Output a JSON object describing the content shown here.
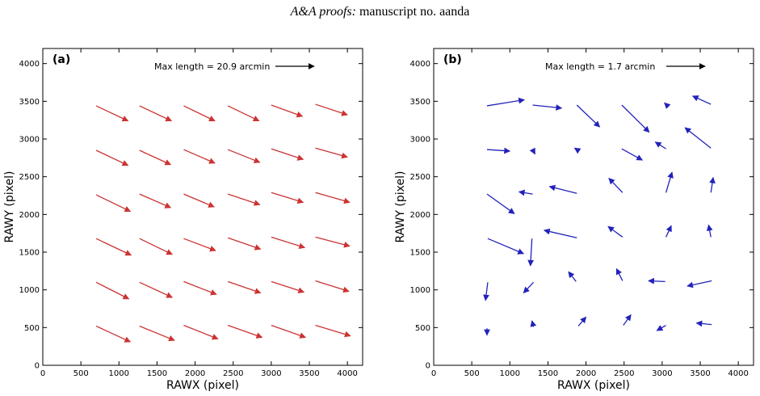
{
  "header": {
    "journal": "A&A proofs:",
    "rest": "manuscript no. aanda"
  },
  "chart_data": [
    {
      "type": "quiver",
      "panel_label": "(a)",
      "xlabel": "RAWX (pixel)",
      "ylabel": "RAWY (pixel)",
      "xlim": [
        0,
        4200
      ],
      "ylim": [
        0,
        4200
      ],
      "xticks": [
        0,
        500,
        1000,
        1500,
        2000,
        2500,
        3000,
        3500,
        4000
      ],
      "yticks": [
        0,
        500,
        1000,
        1500,
        2000,
        2500,
        3000,
        3500,
        4000
      ],
      "color": "#cc3333",
      "legend": "Max length = 20.9 arcmin",
      "vectors": [
        [
          700,
          520,
          1150,
          310
        ],
        [
          1270,
          520,
          1730,
          330
        ],
        [
          1850,
          530,
          2300,
          350
        ],
        [
          2430,
          530,
          2880,
          370
        ],
        [
          3000,
          530,
          3450,
          370
        ],
        [
          3580,
          530,
          4040,
          390
        ],
        [
          700,
          1100,
          1130,
          880
        ],
        [
          1270,
          1100,
          1700,
          900
        ],
        [
          1850,
          1110,
          2280,
          940
        ],
        [
          2430,
          1110,
          2860,
          960
        ],
        [
          3000,
          1110,
          3430,
          970
        ],
        [
          3580,
          1120,
          4020,
          980
        ],
        [
          700,
          1680,
          1160,
          1460
        ],
        [
          1270,
          1680,
          1700,
          1470
        ],
        [
          1850,
          1680,
          2270,
          1520
        ],
        [
          2430,
          1690,
          2860,
          1540
        ],
        [
          3000,
          1700,
          3440,
          1560
        ],
        [
          3580,
          1700,
          4030,
          1580
        ],
        [
          700,
          2260,
          1150,
          2040
        ],
        [
          1270,
          2270,
          1680,
          2090
        ],
        [
          1850,
          2270,
          2250,
          2100
        ],
        [
          2430,
          2270,
          2850,
          2130
        ],
        [
          3000,
          2290,
          3420,
          2160
        ],
        [
          3580,
          2290,
          4030,
          2160
        ],
        [
          700,
          2850,
          1120,
          2650
        ],
        [
          1270,
          2850,
          1680,
          2660
        ],
        [
          1850,
          2860,
          2260,
          2680
        ],
        [
          2430,
          2860,
          2850,
          2690
        ],
        [
          3000,
          2870,
          3420,
          2730
        ],
        [
          3580,
          2880,
          4000,
          2760
        ],
        [
          700,
          3440,
          1120,
          3240
        ],
        [
          1270,
          3440,
          1690,
          3240
        ],
        [
          1850,
          3440,
          2260,
          3240
        ],
        [
          2430,
          3440,
          2840,
          3240
        ],
        [
          3000,
          3450,
          3410,
          3300
        ],
        [
          3580,
          3460,
          4000,
          3320
        ]
      ]
    },
    {
      "type": "quiver",
      "panel_label": "(b)",
      "xlabel": "RAWX (pixel)",
      "ylabel": "RAWY (pixel)",
      "xlim": [
        0,
        4200
      ],
      "ylim": [
        0,
        4200
      ],
      "xticks": [
        0,
        500,
        1000,
        1500,
        2000,
        2500,
        3000,
        3500,
        4000
      ],
      "yticks": [
        0,
        500,
        1000,
        1500,
        2000,
        2500,
        3000,
        3500,
        4000
      ],
      "color": "#2222bb",
      "legend": "Max length = 1.7 arcmin",
      "vectors": [
        [
          700,
          490,
          700,
          400
        ],
        [
          1310,
          510,
          1290,
          590
        ],
        [
          1900,
          520,
          2000,
          640
        ],
        [
          2490,
          530,
          2590,
          670
        ],
        [
          3050,
          530,
          2930,
          460
        ],
        [
          3650,
          540,
          3450,
          560
        ],
        [
          710,
          1100,
          680,
          860
        ],
        [
          1310,
          1100,
          1180,
          960
        ],
        [
          1870,
          1110,
          1770,
          1240
        ],
        [
          2480,
          1120,
          2400,
          1280
        ],
        [
          3040,
          1110,
          2820,
          1120
        ],
        [
          3650,
          1120,
          3330,
          1050
        ],
        [
          710,
          1680,
          1180,
          1480
        ],
        [
          1290,
          1680,
          1270,
          1320
        ],
        [
          1880,
          1690,
          1450,
          1790
        ],
        [
          2480,
          1700,
          2290,
          1840
        ],
        [
          3050,
          1700,
          3120,
          1850
        ],
        [
          3640,
          1700,
          3610,
          1860
        ],
        [
          700,
          2270,
          1060,
          2010
        ],
        [
          1300,
          2270,
          1120,
          2300
        ],
        [
          1880,
          2280,
          1520,
          2370
        ],
        [
          2480,
          2290,
          2300,
          2480
        ],
        [
          3050,
          2290,
          3130,
          2560
        ],
        [
          3640,
          2290,
          3670,
          2490
        ],
        [
          700,
          2860,
          1000,
          2840
        ],
        [
          1300,
          2860,
          1330,
          2800
        ],
        [
          1880,
          2860,
          1850,
          2880
        ],
        [
          2470,
          2870,
          2740,
          2720
        ],
        [
          3050,
          2870,
          2910,
          2960
        ],
        [
          3640,
          2880,
          3300,
          3150
        ],
        [
          700,
          3440,
          1190,
          3520
        ],
        [
          1300,
          3450,
          1680,
          3410
        ],
        [
          1880,
          3450,
          2180,
          3160
        ],
        [
          2470,
          3450,
          2830,
          3090
        ],
        [
          3050,
          3460,
          3030,
          3480
        ],
        [
          3640,
          3460,
          3400,
          3570
        ]
      ]
    }
  ]
}
